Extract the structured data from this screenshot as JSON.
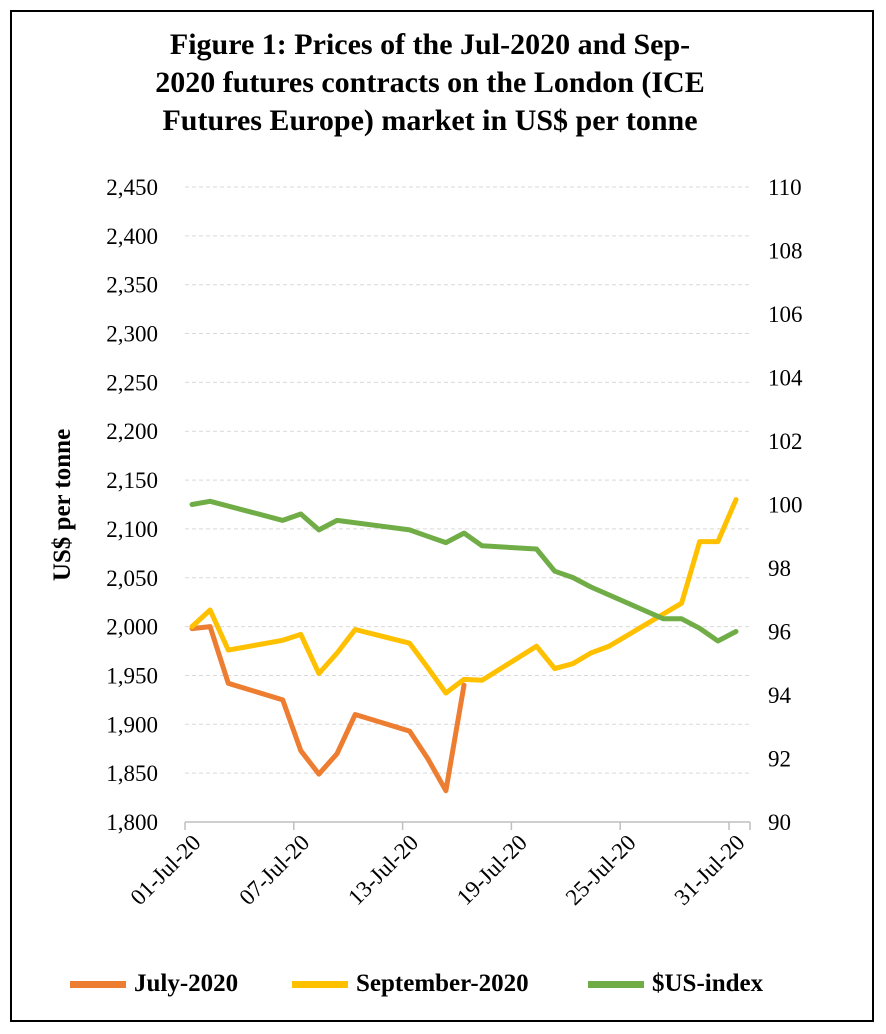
{
  "chart_data": {
    "type": "line",
    "title": "Figure 1: Prices of the Jul-2020 and Sep-2020 futures contracts on the London (ICE Futures Europe) market in US$ per tonne",
    "title_lines": [
      "Figure 1: Prices of the Jul-2020 and Sep-",
      "2020 futures contracts on the London (ICE",
      "Futures Europe) market in US$ per tonne"
    ],
    "ylabel": "US$ per tonne",
    "y_left": {
      "min": 1800,
      "max": 2450,
      "step": 50,
      "tick_labels": [
        "1,800",
        "1,850",
        "1,900",
        "1,950",
        "2,000",
        "2,050",
        "2,100",
        "2,150",
        "2,200",
        "2,250",
        "2,300",
        "2,350",
        "2,400",
        "2,450"
      ]
    },
    "y_right": {
      "min": 90,
      "max": 110,
      "step": 2,
      "tick_labels": [
        "90",
        "92",
        "94",
        "96",
        "98",
        "100",
        "102",
        "104",
        "106",
        "108",
        "110"
      ]
    },
    "x_range": [
      "2020-07-01",
      "2020-07-31"
    ],
    "x_tick_labels": [
      "01-Jul-20",
      "07-Jul-20",
      "13-Jul-20",
      "19-Jul-20",
      "25-Jul-20",
      "31-Jul-20"
    ],
    "x_tick_dates": [
      "2020-07-01",
      "2020-07-07",
      "2020-07-13",
      "2020-07-19",
      "2020-07-25",
      "2020-07-31"
    ],
    "grid": "horizontal-dashed",
    "legend_position": "bottom",
    "series": [
      {
        "name": "July-2020",
        "axis": "left",
        "color": "#ED7D31",
        "points": [
          {
            "date": "2020-07-01",
            "value": 1998
          },
          {
            "date": "2020-07-02",
            "value": 2000
          },
          {
            "date": "2020-07-03",
            "value": 1942
          },
          {
            "date": "2020-07-06",
            "value": 1925
          },
          {
            "date": "2020-07-07",
            "value": 1873
          },
          {
            "date": "2020-07-08",
            "value": 1849
          },
          {
            "date": "2020-07-09",
            "value": 1870
          },
          {
            "date": "2020-07-10",
            "value": 1910
          },
          {
            "date": "2020-07-13",
            "value": 1893
          },
          {
            "date": "2020-07-14",
            "value": 1865
          },
          {
            "date": "2020-07-15",
            "value": 1832
          },
          {
            "date": "2020-07-16",
            "value": 1940
          }
        ]
      },
      {
        "name": "September-2020",
        "axis": "left",
        "color": "#FFC000",
        "points": [
          {
            "date": "2020-07-01",
            "value": 2000
          },
          {
            "date": "2020-07-02",
            "value": 2017
          },
          {
            "date": "2020-07-03",
            "value": 1976
          },
          {
            "date": "2020-07-06",
            "value": 1986
          },
          {
            "date": "2020-07-07",
            "value": 1992
          },
          {
            "date": "2020-07-08",
            "value": 1952
          },
          {
            "date": "2020-07-09",
            "value": 1973
          },
          {
            "date": "2020-07-10",
            "value": 1997
          },
          {
            "date": "2020-07-13",
            "value": 1983
          },
          {
            "date": "2020-07-14",
            "value": 1958
          },
          {
            "date": "2020-07-15",
            "value": 1932
          },
          {
            "date": "2020-07-16",
            "value": 1946
          },
          {
            "date": "2020-07-17",
            "value": 1945
          },
          {
            "date": "2020-07-20",
            "value": 1980
          },
          {
            "date": "2020-07-21",
            "value": 1957
          },
          {
            "date": "2020-07-22",
            "value": 1962
          },
          {
            "date": "2020-07-23",
            "value": 1973
          },
          {
            "date": "2020-07-24",
            "value": 1980
          },
          {
            "date": "2020-07-27",
            "value": 2013
          },
          {
            "date": "2020-07-28",
            "value": 2024
          },
          {
            "date": "2020-07-29",
            "value": 2087
          },
          {
            "date": "2020-07-30",
            "value": 2087
          },
          {
            "date": "2020-07-31",
            "value": 2130
          }
        ]
      },
      {
        "name": "$US-index",
        "axis": "right",
        "color": "#70AD47",
        "points": [
          {
            "date": "2020-07-01",
            "value": 100.0
          },
          {
            "date": "2020-07-02",
            "value": 100.1
          },
          {
            "date": "2020-07-06",
            "value": 99.5
          },
          {
            "date": "2020-07-07",
            "value": 99.7
          },
          {
            "date": "2020-07-08",
            "value": 99.2
          },
          {
            "date": "2020-07-09",
            "value": 99.5
          },
          {
            "date": "2020-07-13",
            "value": 99.2
          },
          {
            "date": "2020-07-14",
            "value": 99.0
          },
          {
            "date": "2020-07-15",
            "value": 98.8
          },
          {
            "date": "2020-07-16",
            "value": 99.1
          },
          {
            "date": "2020-07-17",
            "value": 98.7
          },
          {
            "date": "2020-07-20",
            "value": 98.6
          },
          {
            "date": "2020-07-21",
            "value": 97.9
          },
          {
            "date": "2020-07-22",
            "value": 97.7
          },
          {
            "date": "2020-07-23",
            "value": 97.4
          },
          {
            "date": "2020-07-27",
            "value": 96.4
          },
          {
            "date": "2020-07-28",
            "value": 96.4
          },
          {
            "date": "2020-07-29",
            "value": 96.1
          },
          {
            "date": "2020-07-30",
            "value": 95.7
          },
          {
            "date": "2020-07-31",
            "value": 96.0
          }
        ]
      }
    ]
  }
}
